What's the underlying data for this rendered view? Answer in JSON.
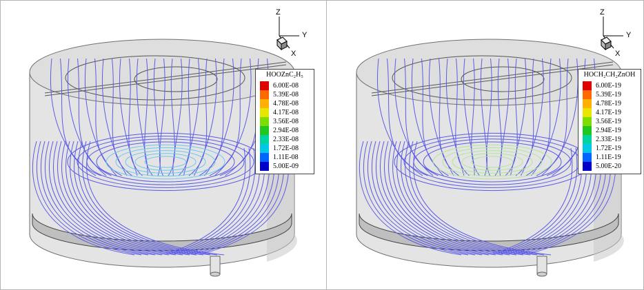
{
  "panels": [
    {
      "axis": {
        "z": "Z",
        "y": "Y",
        "x": "X"
      },
      "legend": {
        "title": "HOOZnC₂H₅",
        "levels": [
          {
            "value": "6.00E-08",
            "color": "#e00000"
          },
          {
            "value": "5.39E-08",
            "color": "#ff6a00"
          },
          {
            "value": "4.78E-08",
            "color": "#ffb000"
          },
          {
            "value": "4.17E-08",
            "color": "#e6e600"
          },
          {
            "value": "3.56E-08",
            "color": "#7fdc00"
          },
          {
            "value": "2.94E-08",
            "color": "#1ec81e"
          },
          {
            "value": "2.33E-08",
            "color": "#00d2a0"
          },
          {
            "value": "1.72E-08",
            "color": "#00c8e6"
          },
          {
            "value": "1.11E-08",
            "color": "#0064ff"
          },
          {
            "value": "5.00E-09",
            "color": "#0000c8"
          }
        ]
      }
    },
    {
      "axis": {
        "z": "Z",
        "y": "Y",
        "x": "X"
      },
      "legend": {
        "title": "HOCH₂CH₂ZnOH",
        "levels": [
          {
            "value": "6.00E-19",
            "color": "#e00000"
          },
          {
            "value": "5.39E-19",
            "color": "#ff6a00"
          },
          {
            "value": "4.78E-19",
            "color": "#ffb000"
          },
          {
            "value": "4.17E-19",
            "color": "#e6e600"
          },
          {
            "value": "3.56E-19",
            "color": "#7fdc00"
          },
          {
            "value": "2.94E-19",
            "color": "#1ec81e"
          },
          {
            "value": "2.33E-19",
            "color": "#00d2a0"
          },
          {
            "value": "1.72E-19",
            "color": "#00c8e6"
          },
          {
            "value": "1.11E-19",
            "color": "#0064ff"
          },
          {
            "value": "5.00E-20",
            "color": "#0000c8"
          }
        ]
      }
    }
  ],
  "colors": {
    "streamline": "#5a5ae6",
    "vessel": "#d7d7d7",
    "vessel_edge": "#6e6e6e"
  }
}
